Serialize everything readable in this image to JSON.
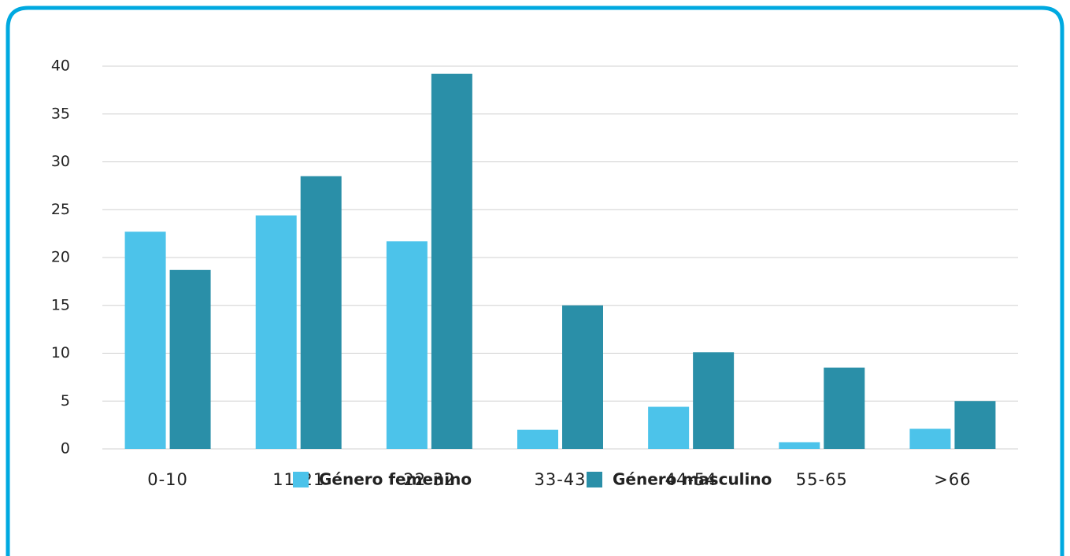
{
  "chart_data": {
    "type": "bar",
    "categories": [
      "0-10",
      "11-21",
      "22-32",
      "33-43",
      "44-54",
      "55-65",
      ">66"
    ],
    "series": [
      {
        "name": "Género femenino",
        "color": "#4cc3ea",
        "values": [
          22.7,
          24.4,
          21.7,
          2.0,
          4.4,
          0.7,
          2.1
        ]
      },
      {
        "name": "Género masculino",
        "color": "#2a8fa8",
        "values": [
          18.7,
          28.5,
          39.2,
          15.0,
          10.1,
          8.5,
          5.0
        ]
      }
    ],
    "ylim": [
      0,
      40
    ],
    "yticks": [
      0,
      5,
      10,
      15,
      20,
      25,
      30,
      35,
      40
    ],
    "grid": true,
    "legend": "bottom"
  }
}
